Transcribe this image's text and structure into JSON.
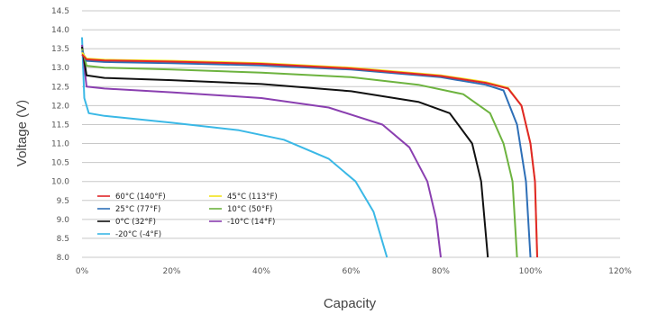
{
  "chart_data": {
    "type": "line",
    "title": "",
    "xlabel": "Capacity",
    "ylabel": "Voltage (V)",
    "xlim": [
      0,
      120
    ],
    "ylim": [
      8.0,
      14.5
    ],
    "x_ticks": [
      "0%",
      "20%",
      "40%",
      "60%",
      "80%",
      "100%",
      "120%"
    ],
    "y_ticks": [
      "8.0",
      "8.5",
      "9.0",
      "9.5",
      "10.0",
      "10.5",
      "11.0",
      "11.5",
      "12.0",
      "12.5",
      "13.0",
      "13.5",
      "14.0",
      "14.5"
    ],
    "grid": "horizontal",
    "legend_position": "bottom-left",
    "series": [
      {
        "name": "60°C (140°F)",
        "color": "#e0262a",
        "points": [
          [
            0,
            13.35
          ],
          [
            1,
            13.22
          ],
          [
            5,
            13.19
          ],
          [
            20,
            13.16
          ],
          [
            40,
            13.1
          ],
          [
            60,
            12.98
          ],
          [
            80,
            12.78
          ],
          [
            90,
            12.6
          ],
          [
            95,
            12.45
          ],
          [
            98,
            12.0
          ],
          [
            100,
            11.0
          ],
          [
            101,
            10.0
          ],
          [
            101.5,
            8.0
          ]
        ]
      },
      {
        "name": "45°C (113°F)",
        "color": "#f2e21c",
        "points": [
          [
            0,
            13.4
          ],
          [
            1,
            13.24
          ],
          [
            5,
            13.21
          ],
          [
            20,
            13.18
          ],
          [
            40,
            13.12
          ],
          [
            60,
            13.0
          ],
          [
            80,
            12.8
          ],
          [
            90,
            12.62
          ],
          [
            95,
            12.47
          ],
          [
            98,
            12.0
          ],
          [
            100,
            11.0
          ],
          [
            101,
            10.0
          ],
          [
            101.5,
            8.0
          ]
        ]
      },
      {
        "name": "25°C (77°F)",
        "color": "#2e6fb7",
        "points": [
          [
            0,
            13.45
          ],
          [
            1,
            13.18
          ],
          [
            5,
            13.15
          ],
          [
            20,
            13.12
          ],
          [
            40,
            13.06
          ],
          [
            60,
            12.95
          ],
          [
            80,
            12.75
          ],
          [
            90,
            12.55
          ],
          [
            94,
            12.4
          ],
          [
            97,
            11.5
          ],
          [
            99,
            10.0
          ],
          [
            100,
            8.0
          ]
        ]
      },
      {
        "name": "10°C (50°F)",
        "color": "#6db33f",
        "points": [
          [
            0,
            13.5
          ],
          [
            1,
            13.05
          ],
          [
            5,
            13.0
          ],
          [
            20,
            12.95
          ],
          [
            40,
            12.87
          ],
          [
            60,
            12.75
          ],
          [
            75,
            12.55
          ],
          [
            85,
            12.3
          ],
          [
            91,
            11.8
          ],
          [
            94,
            11.0
          ],
          [
            96,
            10.0
          ],
          [
            97,
            8.0
          ]
        ]
      },
      {
        "name": "0°C (32°F)",
        "color": "#111111",
        "points": [
          [
            0,
            13.55
          ],
          [
            1,
            12.8
          ],
          [
            5,
            12.73
          ],
          [
            20,
            12.67
          ],
          [
            40,
            12.57
          ],
          [
            60,
            12.38
          ],
          [
            75,
            12.1
          ],
          [
            82,
            11.8
          ],
          [
            87,
            11.0
          ],
          [
            89,
            10.0
          ],
          [
            90.5,
            8.0
          ]
        ]
      },
      {
        "name": "-10°C (14°F)",
        "color": "#8a3fb0",
        "points": [
          [
            0,
            13.6
          ],
          [
            1,
            12.5
          ],
          [
            5,
            12.45
          ],
          [
            20,
            12.35
          ],
          [
            40,
            12.2
          ],
          [
            55,
            11.95
          ],
          [
            67,
            11.5
          ],
          [
            73,
            10.9
          ],
          [
            77,
            10.0
          ],
          [
            79,
            9.0
          ],
          [
            80,
            8.0
          ]
        ]
      },
      {
        "name": "-20°C (-4°F)",
        "color": "#3ab8e6",
        "points": [
          [
            0,
            13.8
          ],
          [
            0.5,
            12.2
          ],
          [
            1.5,
            11.8
          ],
          [
            5,
            11.73
          ],
          [
            20,
            11.55
          ],
          [
            35,
            11.35
          ],
          [
            45,
            11.1
          ],
          [
            55,
            10.6
          ],
          [
            61,
            10.0
          ],
          [
            65,
            9.2
          ],
          [
            68,
            8.0
          ]
        ]
      }
    ]
  },
  "legend": [
    [
      "60°C (140°F)",
      "45°C (113°F)"
    ],
    [
      "25°C (77°F)",
      "10°C (50°F)"
    ],
    [
      "0°C (32°F)",
      "-10°C (14°F)"
    ],
    [
      "-20°C (-4°F)"
    ]
  ]
}
